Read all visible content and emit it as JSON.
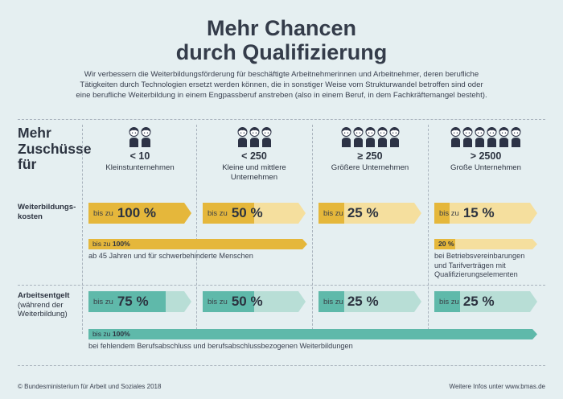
{
  "title_line1": "Mehr Chancen",
  "title_line2": "durch Qualifizierung",
  "intro_lines": [
    "Wir verbessern die Weiterbildungsförderung für beschäftigte Arbeitnehmerinnen und Arbeitnehmer, deren berufliche",
    "Tätigkeiten durch Technologien ersetzt werden können, die in sonstiger Weise vom Strukturwandel betroffen sind oder",
    "eine berufliche Weiterbildung in einem Engpassberuf anstreben (also in einem Beruf, in dem Fachkräftemangel besteht)."
  ],
  "heading_lines": [
    "Mehr",
    "Zuschüsse",
    "für"
  ],
  "columns": [
    {
      "size": "< 10",
      "label_lines": [
        "Kleinstunternehmen"
      ],
      "people": 2
    },
    {
      "size": "< 250",
      "label_lines": [
        "Kleine und mittlere",
        "Unternehmen"
      ],
      "people": 3
    },
    {
      "size": "≥ 250",
      "label_lines": [
        "Größere Unternehmen"
      ],
      "people": 5
    },
    {
      "size": "> 2500",
      "label_lines": [
        "Große Unternehmen"
      ],
      "people": 6
    }
  ],
  "rows": {
    "weiterbildung": {
      "label_lines": [
        "Weiterbildungs-",
        "kosten"
      ],
      "prefix": "bis zu",
      "values": [
        "100 %",
        "50 %",
        "25 %",
        "15 %"
      ],
      "fractions": [
        1.0,
        0.5,
        0.25,
        0.15
      ],
      "color_dark": "#e5b73b",
      "color_light": "#f5df9e"
    },
    "arbeitsentgelt": {
      "label_lines": [
        "Arbeitsentgelt",
        "(während der",
        "Weiterbildung)"
      ],
      "prefix": "bis zu",
      "values": [
        "75 %",
        "50 %",
        "25 %",
        "25 %"
      ],
      "fractions": [
        0.75,
        0.5,
        0.25,
        0.25
      ],
      "color_dark": "#5fb9aa",
      "color_light": "#b8ded6"
    }
  },
  "extra_bars": {
    "age": {
      "prefix": "bis zu",
      "value": "100%",
      "note": "ab 45 Jahren und für schwerbehinderte Menschen"
    },
    "tarif": {
      "value": "20 %",
      "note_lines": [
        "bei  Betriebsvereinbarungen",
        "und Tarifverträgen mit",
        "Qualifizierungselementen"
      ]
    },
    "berufsabschluss": {
      "prefix": "bis zu",
      "value": "100%",
      "note": "bei fehlendem Berufsabschluss und berufsabschlussbezogenen Weiterbildungen"
    }
  },
  "footer_left": "© Bundesministerium für Arbeit und Soziales 2018",
  "footer_right": "Weitere Infos unter www.bmas.de",
  "colors": {
    "person": "#2d3346",
    "background": "#e5eff1"
  }
}
